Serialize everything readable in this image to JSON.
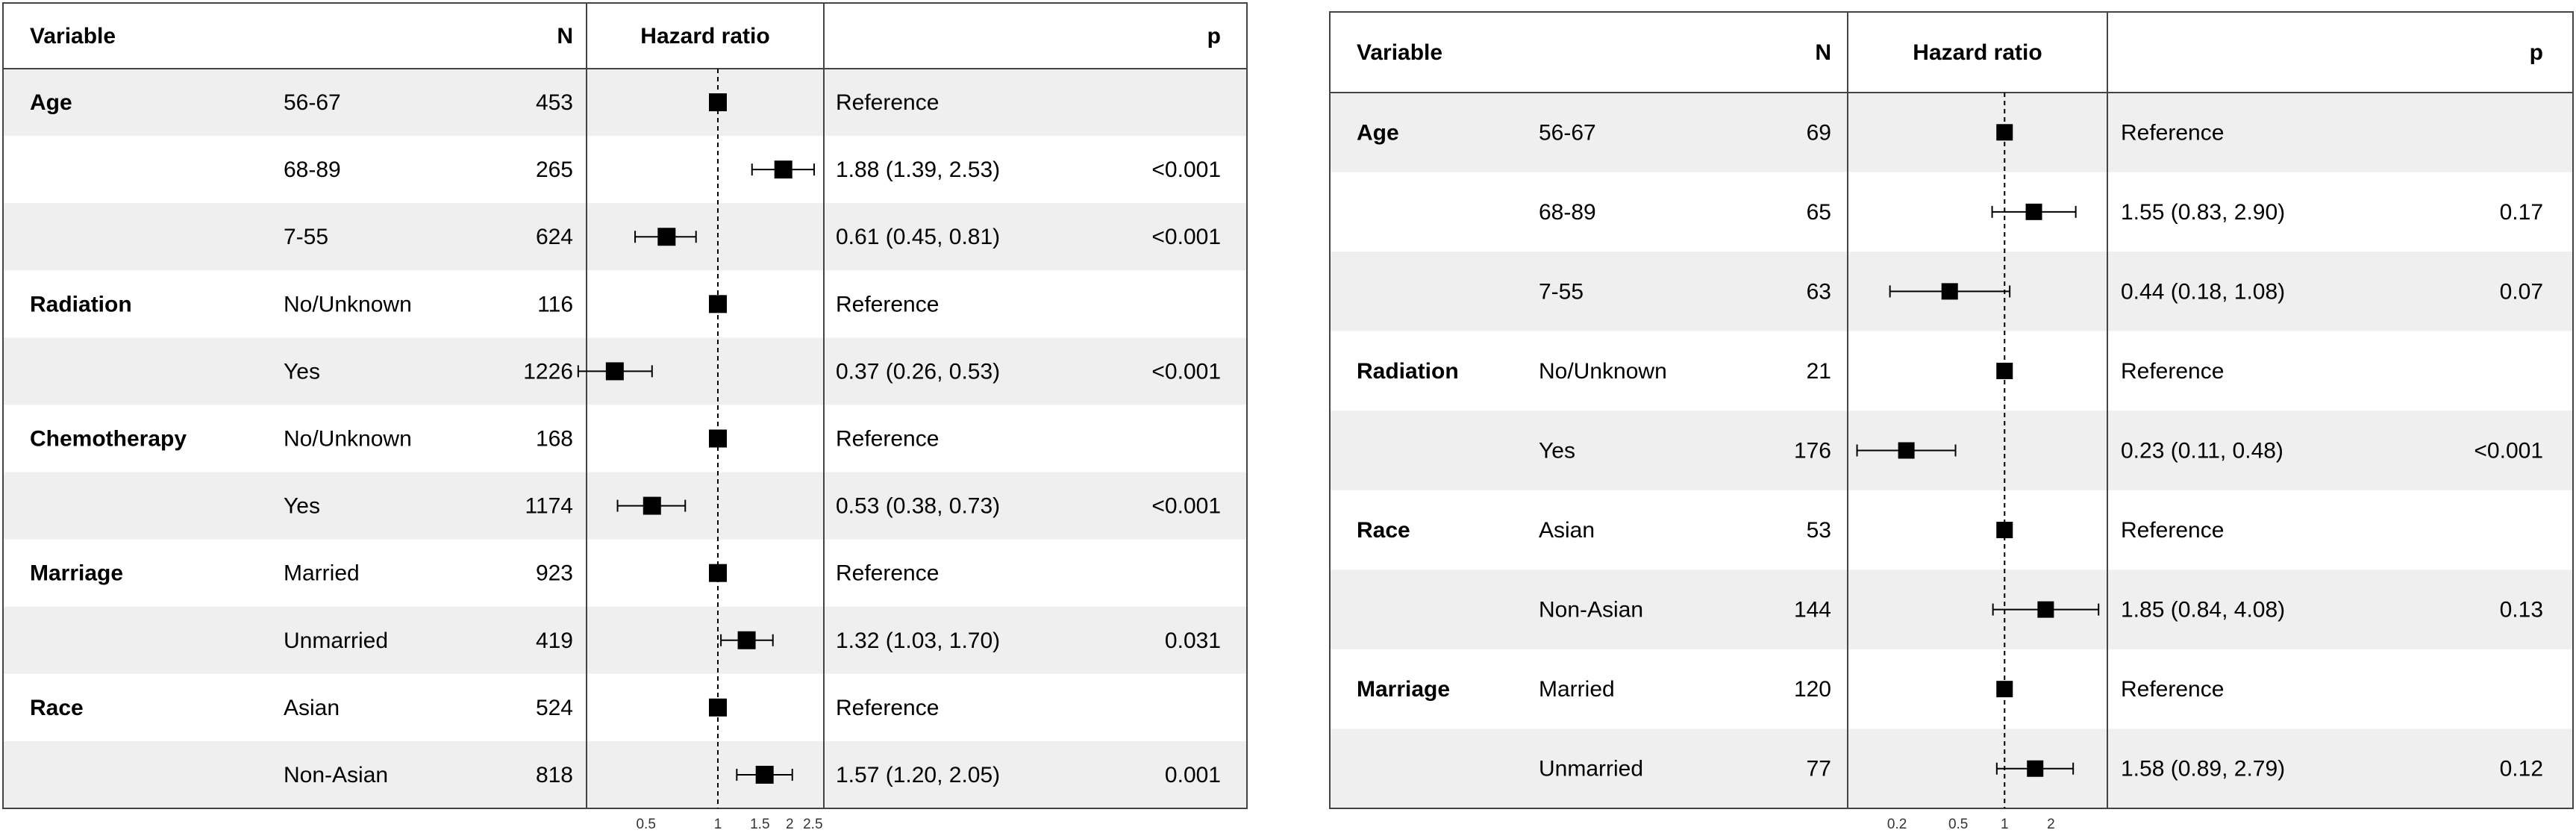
{
  "chart_data": [
    {
      "type": "forest",
      "headers": {
        "variable": "Variable",
        "n": "N",
        "effect": "Hazard ratio",
        "p": "p"
      },
      "x_scale": "log",
      "xlim": [
        0.29,
        2.7
      ],
      "reference_line": 1,
      "x_ticks": [
        0.5,
        1,
        1.5,
        2,
        2.5
      ],
      "x_tick_labels": [
        "0.5",
        "1",
        "1.5",
        "2",
        "2.5"
      ],
      "rows": [
        {
          "variable": "Age",
          "level": "56-67",
          "n": "453",
          "hr": 1,
          "lower": 1,
          "upper": 1,
          "estimate_text": "Reference",
          "p": ""
        },
        {
          "variable": "",
          "level": "68-89",
          "n": "265",
          "hr": 1.88,
          "lower": 1.39,
          "upper": 2.53,
          "estimate_text": "1.88 (1.39, 2.53)",
          "p": "<0.001"
        },
        {
          "variable": "",
          "level": "7-55",
          "n": "624",
          "hr": 0.61,
          "lower": 0.45,
          "upper": 0.81,
          "estimate_text": "0.61 (0.45, 0.81)",
          "p": "<0.001"
        },
        {
          "variable": "Radiation",
          "level": "No/Unknown",
          "n": "116",
          "hr": 1,
          "lower": 1,
          "upper": 1,
          "estimate_text": "Reference",
          "p": ""
        },
        {
          "variable": "",
          "level": "Yes",
          "n": "1226",
          "hr": 0.37,
          "lower": 0.26,
          "upper": 0.53,
          "estimate_text": "0.37 (0.26, 0.53)",
          "p": "<0.001"
        },
        {
          "variable": "Chemotherapy",
          "level": "No/Unknown",
          "n": "168",
          "hr": 1,
          "lower": 1,
          "upper": 1,
          "estimate_text": "Reference",
          "p": ""
        },
        {
          "variable": "",
          "level": "Yes",
          "n": "1174",
          "hr": 0.53,
          "lower": 0.38,
          "upper": 0.73,
          "estimate_text": "0.53 (0.38, 0.73)",
          "p": "<0.001"
        },
        {
          "variable": "Marriage",
          "level": "Married",
          "n": "923",
          "hr": 1,
          "lower": 1,
          "upper": 1,
          "estimate_text": "Reference",
          "p": ""
        },
        {
          "variable": "",
          "level": "Unmarried",
          "n": "419",
          "hr": 1.32,
          "lower": 1.03,
          "upper": 1.7,
          "estimate_text": "1.32 (1.03, 1.70)",
          "p": "0.031"
        },
        {
          "variable": "Race",
          "level": "Asian",
          "n": "524",
          "hr": 1,
          "lower": 1,
          "upper": 1,
          "estimate_text": "Reference",
          "p": ""
        },
        {
          "variable": "",
          "level": "Non-Asian",
          "n": "818",
          "hr": 1.57,
          "lower": 1.2,
          "upper": 2.05,
          "estimate_text": "1.57 (1.20, 2.05)",
          "p": "0.001"
        }
      ]
    },
    {
      "type": "forest",
      "headers": {
        "variable": "Variable",
        "n": "N",
        "effect": "Hazard ratio",
        "p": "p"
      },
      "x_scale": "log",
      "xlim": [
        0.1,
        4.45
      ],
      "reference_line": 1,
      "x_ticks": [
        0.2,
        0.5,
        1,
        2
      ],
      "x_tick_labels": [
        "0.2",
        "0.5",
        "1",
        "2"
      ],
      "rows": [
        {
          "variable": "Age",
          "level": "56-67",
          "n": "69",
          "hr": 1,
          "lower": 1,
          "upper": 1,
          "estimate_text": "Reference",
          "p": ""
        },
        {
          "variable": "",
          "level": "68-89",
          "n": "65",
          "hr": 1.55,
          "lower": 0.83,
          "upper": 2.9,
          "estimate_text": "1.55 (0.83, 2.90)",
          "p": "0.17"
        },
        {
          "variable": "",
          "level": "7-55",
          "n": "63",
          "hr": 0.44,
          "lower": 0.18,
          "upper": 1.08,
          "estimate_text": "0.44 (0.18, 1.08)",
          "p": "0.07"
        },
        {
          "variable": "Radiation",
          "level": "No/Unknown",
          "n": "21",
          "hr": 1,
          "lower": 1,
          "upper": 1,
          "estimate_text": "Reference",
          "p": ""
        },
        {
          "variable": "",
          "level": "Yes",
          "n": "176",
          "hr": 0.23,
          "lower": 0.11,
          "upper": 0.48,
          "estimate_text": "0.23 (0.11, 0.48)",
          "p": "<0.001"
        },
        {
          "variable": "Race",
          "level": "Asian",
          "n": "53",
          "hr": 1,
          "lower": 1,
          "upper": 1,
          "estimate_text": "Reference",
          "p": ""
        },
        {
          "variable": "",
          "level": "Non-Asian",
          "n": "144",
          "hr": 1.85,
          "lower": 0.84,
          "upper": 4.08,
          "estimate_text": "1.85 (0.84, 4.08)",
          "p": "0.13"
        },
        {
          "variable": "Marriage",
          "level": "Married",
          "n": "120",
          "hr": 1,
          "lower": 1,
          "upper": 1,
          "estimate_text": "Reference",
          "p": ""
        },
        {
          "variable": "",
          "level": "Unmarried",
          "n": "77",
          "hr": 1.58,
          "lower": 0.89,
          "upper": 2.79,
          "estimate_text": "1.58 (0.89, 2.79)",
          "p": "0.12"
        }
      ]
    }
  ]
}
